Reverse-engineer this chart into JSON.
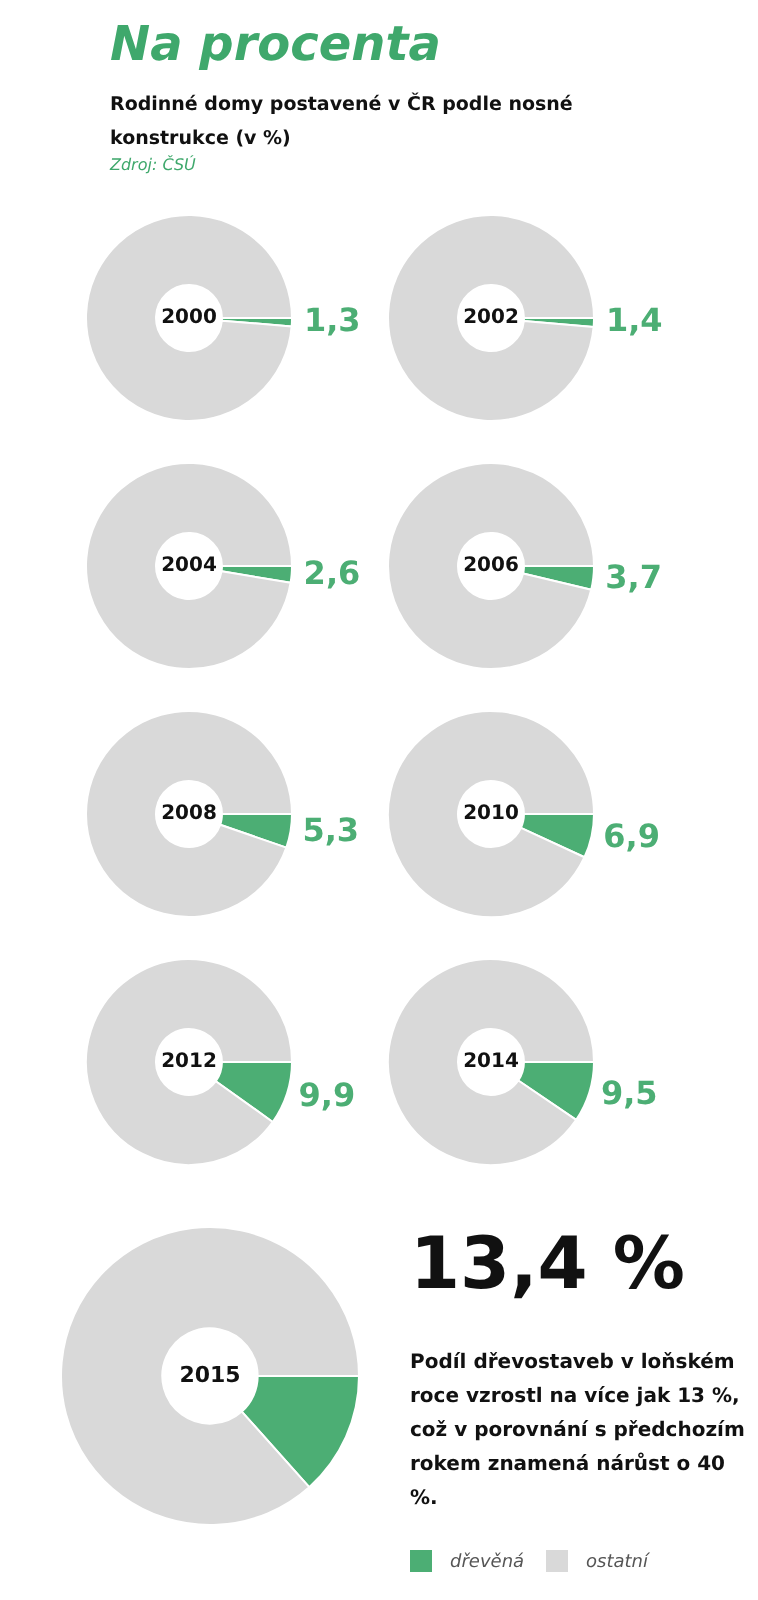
{
  "chart_data": [
    {
      "type": "other",
      "title": "Na procenta",
      "subtitle": "Rodinné domy postavené v ČR podle nosné konstrukce (v %)",
      "annotations": [
        "Zdroj: ČSÚ"
      ]
    },
    {
      "type": "donut",
      "title": "2000",
      "categories": [
        null,
        null
      ],
      "values": [
        1.3,
        98.7
      ],
      "colors": [
        "#4cae74",
        "#d9d9d9"
      ],
      "value_labels": [
        "1,3",
        null
      ]
    },
    {
      "type": "donut",
      "title": "2002",
      "categories": [
        null,
        null
      ],
      "values": [
        1.4,
        98.6
      ],
      "colors": [
        "#4cae74",
        "#d9d9d9"
      ],
      "value_labels": [
        "1,4",
        null
      ]
    },
    {
      "type": "donut",
      "title": "2004",
      "categories": [
        null,
        null
      ],
      "values": [
        2.6,
        97.4
      ],
      "colors": [
        "#4cae74",
        "#d9d9d9"
      ],
      "value_labels": [
        "2,6",
        null
      ]
    },
    {
      "type": "donut",
      "title": "2006",
      "categories": [
        null,
        null
      ],
      "values": [
        3.7,
        96.3
      ],
      "colors": [
        "#4cae74",
        "#d9d9d9"
      ],
      "value_labels": [
        "3,7",
        null
      ]
    },
    {
      "type": "donut",
      "title": "2008",
      "categories": [
        null,
        null
      ],
      "values": [
        5.3,
        94.7
      ],
      "colors": [
        "#4cae74",
        "#d9d9d9"
      ],
      "value_labels": [
        "5,3",
        null
      ]
    },
    {
      "type": "donut",
      "title": "2010",
      "categories": [
        null,
        null
      ],
      "values": [
        6.9,
        93.1
      ],
      "colors": [
        "#4cae74",
        "#d9d9d9"
      ],
      "value_labels": [
        "6,9",
        null
      ]
    },
    {
      "type": "donut",
      "title": "2012",
      "categories": [
        null,
        null
      ],
      "values": [
        9.9,
        90.1
      ],
      "colors": [
        "#4cae74",
        "#d9d9d9"
      ],
      "value_labels": [
        "9,9",
        null
      ]
    },
    {
      "type": "donut",
      "title": "2014",
      "categories": [
        null,
        null
      ],
      "values": [
        9.5,
        90.5
      ],
      "colors": [
        "#4cae74",
        "#d9d9d9"
      ],
      "value_labels": [
        "9,5",
        null
      ]
    },
    {
      "type": "donut",
      "title": "2015",
      "categories": [
        "dřevěná",
        "ostatní"
      ],
      "values": [
        13.4,
        86.6
      ],
      "colors": [
        "#4cae74",
        "#d9d9d9"
      ],
      "annotations": [
        "13,4 %",
        "Podíl dřevostaveb v loňském roce vzrostl na více jak 13 %, což v porovnání s předchozím rokem znamená nárůst o 40 %."
      ],
      "legend": "bottom right"
    }
  ]
}
